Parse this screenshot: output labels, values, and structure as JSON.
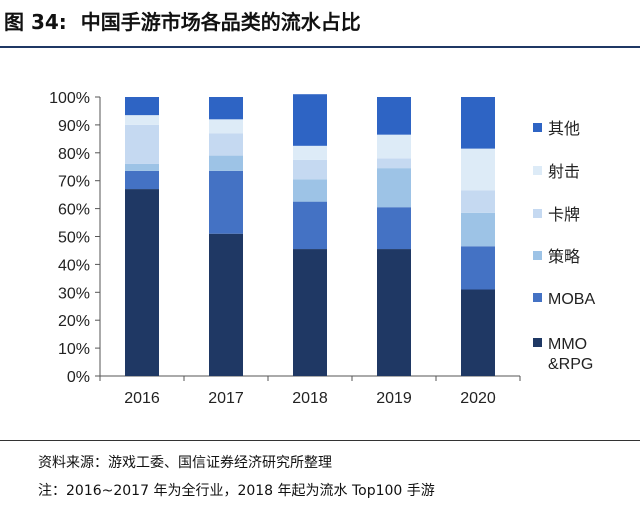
{
  "figure": {
    "number": "图 34:",
    "title": "中国手游市场各品类的流水占比"
  },
  "chart_data": {
    "type": "bar",
    "stacked": true,
    "categories": [
      "2016",
      "2017",
      "2018",
      "2019",
      "2020"
    ],
    "ylim": [
      0,
      100
    ],
    "yticks": [
      "0%",
      "10%",
      "20%",
      "30%",
      "40%",
      "50%",
      "60%",
      "70%",
      "80%",
      "90%",
      "100%"
    ],
    "series": [
      {
        "name": "MMO\n&RPG",
        "color": "#1f3864",
        "values": [
          67,
          51,
          45.5,
          45.5,
          31
        ]
      },
      {
        "name": "MOBA",
        "color": "#4472c4",
        "values": [
          6.5,
          22.5,
          17,
          15,
          15.5
        ]
      },
      {
        "name": "策略",
        "color": "#9dc3e6",
        "values": [
          2.5,
          5.5,
          8,
          14,
          12
        ]
      },
      {
        "name": "卡牌",
        "color": "#c5d9f1",
        "values": [
          14,
          8,
          7,
          3.5,
          8
        ]
      },
      {
        "name": "射击",
        "color": "#ddebf7",
        "values": [
          3.5,
          5,
          5,
          8.5,
          15
        ]
      },
      {
        "name": "其他",
        "color": "#2e64c4",
        "values": [
          6.5,
          8,
          18.5,
          13.5,
          18.5
        ]
      }
    ],
    "legend_position": "right",
    "grid": false
  },
  "footer": {
    "source": "资料来源：游戏工委、国信证券经济研究所整理",
    "note": "注：2016~2017 年为全行业，2018 年起为流水 Top100 手游"
  }
}
